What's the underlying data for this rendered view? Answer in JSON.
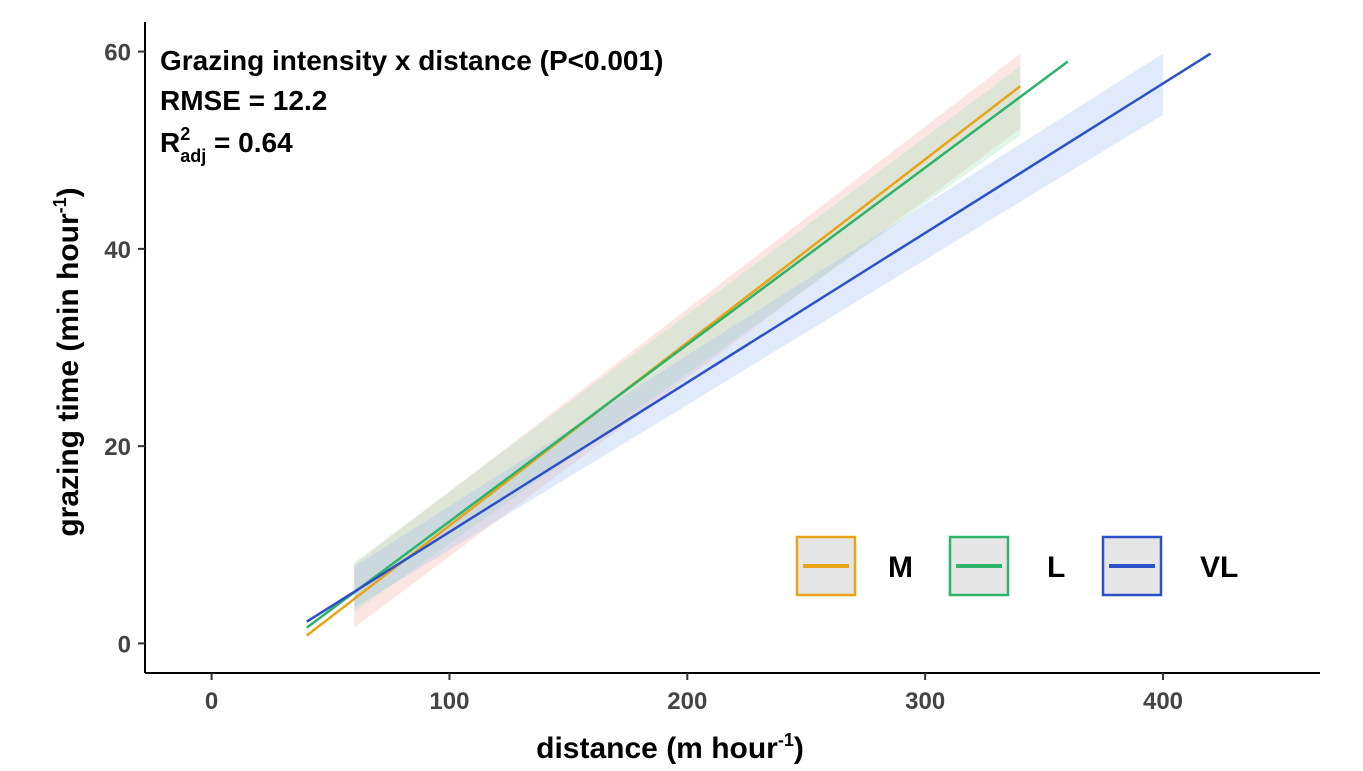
{
  "chart_data": {
    "type": "line",
    "annotations": {
      "line1": "Grazing intensity x distance (P<0.001)",
      "line2": "RMSE = 12.2",
      "r2_base": "R",
      "r2_sup": "2",
      "r2_sub": "adj",
      "r2_value": " = 0.64"
    },
    "xlabel": {
      "base": "distance (m hour",
      "sup": "-1",
      "tail": ")"
    },
    "ylabel": {
      "base": "grazing time (min hour",
      "sup": "-1",
      "tail": ")"
    },
    "xlim": [
      -28,
      466
    ],
    "ylim": [
      -3,
      63
    ],
    "xticks": [
      0,
      100,
      200,
      300,
      400
    ],
    "yticks": [
      0,
      20,
      40,
      60
    ],
    "grid": false,
    "legend_position": "bottom-right",
    "series": [
      {
        "name": "M",
        "color": "#E8A317",
        "band_color": "#F4B6B0",
        "line": [
          [
            40,
            0.8
          ],
          [
            340,
            56.5
          ]
        ],
        "band": {
          "x": [
            60,
            340
          ],
          "lower": [
            1.6,
            52.2
          ],
          "upper": [
            8.0,
            59.8
          ]
        }
      },
      {
        "name": "L",
        "color": "#2DB36A",
        "band_color": "#A8E2BC",
        "line": [
          [
            40,
            1.6
          ],
          [
            360,
            59.0
          ]
        ],
        "band": {
          "x": [
            60,
            340
          ],
          "lower": [
            3.2,
            51.5
          ],
          "upper": [
            8.2,
            58.5
          ]
        }
      },
      {
        "name": "VL",
        "color": "#2C50C8",
        "band_color": "#A9C4F0",
        "line": [
          [
            40,
            2.2
          ],
          [
            420,
            59.8
          ]
        ],
        "band": {
          "x": [
            60,
            400
          ],
          "lower": [
            3.6,
            53.6
          ],
          "upper": [
            7.8,
            59.8
          ]
        }
      }
    ]
  }
}
